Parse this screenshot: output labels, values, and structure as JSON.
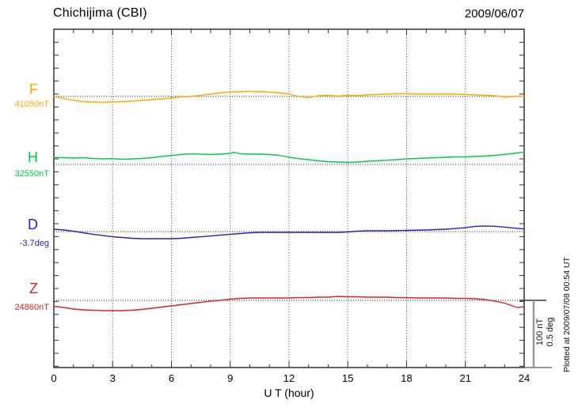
{
  "header": {
    "title": "Chichijima (CBI)",
    "date": "2009/06/07"
  },
  "footer": {
    "plotted_at": "Plotted at 2009/07/08 00:54 UT"
  },
  "chart_data": {
    "type": "line",
    "title": "Chichijima (CBI)",
    "date_label": "2009/06/07",
    "xlabel": "U T (hour)",
    "x_range": [
      0,
      24
    ],
    "x_major_ticks": [
      0,
      3,
      6,
      9,
      12,
      15,
      18,
      21,
      24
    ],
    "x_minor_step_hours": 1,
    "grid_hours": [
      3,
      6,
      9,
      12,
      15,
      18,
      21
    ],
    "grid_style": "dotted-vertical",
    "points_format": "[ut_hour, deviation_from_baseline_in_series_unit]",
    "scale_bar": {
      "label_nt": "100 nT",
      "label_deg": "0.5 deg",
      "nT_per_bar": 100,
      "deg_per_bar": 0.5
    },
    "series": [
      {
        "name": "F",
        "unit": "nT",
        "baseline_label": "41050nT",
        "baseline_value": 41050,
        "color": "#FFAA00",
        "points": [
          [
            0,
            0
          ],
          [
            0.5,
            -3
          ],
          [
            1,
            -6.1
          ],
          [
            1.5,
            -7.9
          ],
          [
            2,
            -8.5
          ],
          [
            2.5,
            -9.1
          ],
          [
            3,
            -8.5
          ],
          [
            3.5,
            -7.9
          ],
          [
            4,
            -7.3
          ],
          [
            4.5,
            -6.1
          ],
          [
            5,
            -4.9
          ],
          [
            5.5,
            -3.7
          ],
          [
            6,
            -2.4
          ],
          [
            6.5,
            -0.6
          ],
          [
            7,
            0
          ],
          [
            7.5,
            1.8
          ],
          [
            8,
            3.7
          ],
          [
            8.5,
            5.5
          ],
          [
            9,
            6.7
          ],
          [
            9.5,
            7.3
          ],
          [
            10,
            7.9
          ],
          [
            10.5,
            7.3
          ],
          [
            11,
            6.7
          ],
          [
            11.5,
            5.5
          ],
          [
            12,
            3.7
          ],
          [
            12.5,
            0
          ],
          [
            13,
            -1.8
          ],
          [
            13.5,
            1.2
          ],
          [
            14,
            1.8
          ],
          [
            14.5,
            0.6
          ],
          [
            15,
            1.8
          ],
          [
            15.5,
            1.2
          ],
          [
            16,
            2.4
          ],
          [
            16.5,
            3
          ],
          [
            17,
            3.7
          ],
          [
            17.5,
            4.3
          ],
          [
            18,
            4.3
          ],
          [
            18.5,
            3.7
          ],
          [
            19,
            3.7
          ],
          [
            19.5,
            3.7
          ],
          [
            20,
            3.7
          ],
          [
            20.5,
            3.7
          ],
          [
            21,
            3
          ],
          [
            21.5,
            2.4
          ],
          [
            22,
            1.8
          ],
          [
            22.5,
            1.2
          ],
          [
            23,
            -1.2
          ],
          [
            23.5,
            0
          ],
          [
            24,
            0.6
          ]
        ]
      },
      {
        "name": "H",
        "unit": "nT",
        "baseline_label": "32550nT",
        "baseline_value": 32550,
        "color": "#00CC44",
        "points": [
          [
            0,
            10.6
          ],
          [
            0.5,
            10.4
          ],
          [
            1,
            9.8
          ],
          [
            1.5,
            10.4
          ],
          [
            2,
            9.1
          ],
          [
            2.5,
            8.5
          ],
          [
            3,
            8.9
          ],
          [
            3.5,
            7.9
          ],
          [
            4,
            8.5
          ],
          [
            4.5,
            9.1
          ],
          [
            5,
            10.4
          ],
          [
            5.5,
            12.2
          ],
          [
            6,
            13.8
          ],
          [
            6.5,
            15.2
          ],
          [
            7,
            16.2
          ],
          [
            7.5,
            15.9
          ],
          [
            8,
            15.2
          ],
          [
            8.5,
            15.9
          ],
          [
            9,
            17.1
          ],
          [
            9.2,
            18.7
          ],
          [
            9.5,
            16.5
          ],
          [
            10,
            15.9
          ],
          [
            10.5,
            15.9
          ],
          [
            11,
            15.2
          ],
          [
            11.5,
            14
          ],
          [
            12,
            11
          ],
          [
            12.5,
            8.9
          ],
          [
            13,
            7.3
          ],
          [
            13.5,
            5.5
          ],
          [
            14,
            4.3
          ],
          [
            14.5,
            3.7
          ],
          [
            15,
            3
          ],
          [
            15.5,
            3.7
          ],
          [
            16,
            4.9
          ],
          [
            16.5,
            5.5
          ],
          [
            17,
            6.5
          ],
          [
            17.5,
            7.3
          ],
          [
            18,
            8.5
          ],
          [
            18.5,
            9.1
          ],
          [
            19,
            9.8
          ],
          [
            19.5,
            10.4
          ],
          [
            20,
            11
          ],
          [
            20.5,
            11.6
          ],
          [
            21,
            11.6
          ],
          [
            21.5,
            12.2
          ],
          [
            22,
            12.8
          ],
          [
            22.5,
            14
          ],
          [
            23,
            15.2
          ],
          [
            23.5,
            17.1
          ],
          [
            24,
            19.1
          ]
        ]
      },
      {
        "name": "D",
        "unit": "deg",
        "baseline_label": "-3.7deg",
        "baseline_value": -3.7,
        "color": "#2222CC",
        "points": [
          [
            0,
            0.018
          ],
          [
            0.5,
            0.012
          ],
          [
            1,
            0.003
          ],
          [
            1.5,
            -0.009
          ],
          [
            2,
            -0.021
          ],
          [
            2.5,
            -0.03
          ],
          [
            3,
            -0.04
          ],
          [
            3.5,
            -0.046
          ],
          [
            4,
            -0.052
          ],
          [
            4.5,
            -0.055
          ],
          [
            5,
            -0.055
          ],
          [
            5.5,
            -0.055
          ],
          [
            6,
            -0.055
          ],
          [
            6.5,
            -0.052
          ],
          [
            7,
            -0.046
          ],
          [
            7.5,
            -0.04
          ],
          [
            8,
            -0.034
          ],
          [
            8.5,
            -0.027
          ],
          [
            9,
            -0.021
          ],
          [
            9.5,
            -0.015
          ],
          [
            10,
            -0.009
          ],
          [
            10.5,
            -0.006
          ],
          [
            11,
            -0.006
          ],
          [
            12,
            -0.006
          ],
          [
            13,
            -0.006
          ],
          [
            14,
            -0.006
          ],
          [
            14.5,
            -0.006
          ],
          [
            15,
            -0.003
          ],
          [
            15.5,
            0.003
          ],
          [
            16,
            0.006
          ],
          [
            17,
            0.006
          ],
          [
            18,
            0.009
          ],
          [
            19,
            0.012
          ],
          [
            20,
            0.018
          ],
          [
            20.5,
            0.024
          ],
          [
            21,
            0.03
          ],
          [
            21.5,
            0.04
          ],
          [
            22,
            0.043
          ],
          [
            22.5,
            0.041
          ],
          [
            23,
            0.034
          ],
          [
            23.5,
            0.027
          ],
          [
            24,
            0.021
          ]
        ]
      },
      {
        "name": "Z",
        "unit": "nT",
        "baseline_label": "24860nT",
        "baseline_value": 24860,
        "color": "#DD2222",
        "points": [
          [
            0,
            -9.1
          ],
          [
            0.5,
            -11
          ],
          [
            1,
            -13.4
          ],
          [
            1.5,
            -14.6
          ],
          [
            2,
            -15.2
          ],
          [
            2.5,
            -15.9
          ],
          [
            3,
            -15.9
          ],
          [
            3.5,
            -15.9
          ],
          [
            4,
            -15.2
          ],
          [
            4.5,
            -14
          ],
          [
            5,
            -12.2
          ],
          [
            5.5,
            -10.4
          ],
          [
            6,
            -8.5
          ],
          [
            6.5,
            -6.7
          ],
          [
            7,
            -4.9
          ],
          [
            7.5,
            -3
          ],
          [
            8,
            -1.2
          ],
          [
            8.5,
            0
          ],
          [
            9,
            1.8
          ],
          [
            9.5,
            3
          ],
          [
            10,
            3.7
          ],
          [
            11,
            3.7
          ],
          [
            12,
            3.7
          ],
          [
            12.5,
            4.3
          ],
          [
            13,
            4.3
          ],
          [
            13.5,
            4.9
          ],
          [
            14,
            4.9
          ],
          [
            14.5,
            6.1
          ],
          [
            15,
            5.5
          ],
          [
            15.5,
            5.5
          ],
          [
            16,
            4.9
          ],
          [
            17,
            4.9
          ],
          [
            17.5,
            4.3
          ],
          [
            18,
            4.3
          ],
          [
            18.5,
            3.7
          ],
          [
            19,
            3.7
          ],
          [
            20,
            3.7
          ],
          [
            20.5,
            3
          ],
          [
            21,
            3
          ],
          [
            21.5,
            2.4
          ],
          [
            22,
            1.2
          ],
          [
            22.5,
            -1.2
          ],
          [
            23,
            -4.3
          ],
          [
            23.3,
            -7.3
          ],
          [
            23.5,
            -9.8
          ],
          [
            23.7,
            -11
          ],
          [
            24,
            -9.8
          ]
        ]
      }
    ]
  }
}
